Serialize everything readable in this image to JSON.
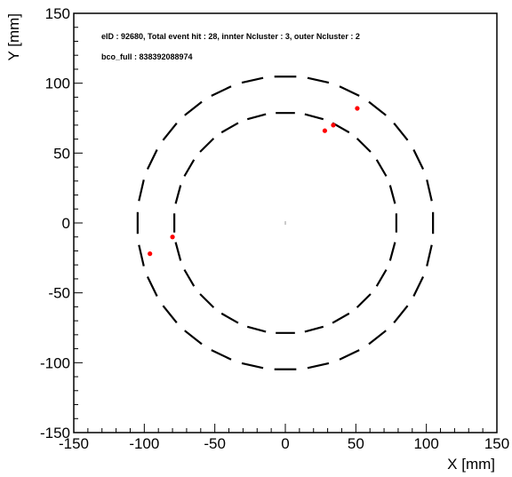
{
  "chart_data": {
    "type": "scatter",
    "title": "",
    "xlabel": "X [mm]",
    "ylabel": "Y [mm]",
    "xlim": [
      -150,
      150
    ],
    "ylim": [
      -150,
      150
    ],
    "x_ticks": [
      -150,
      -100,
      -50,
      0,
      50,
      100,
      150
    ],
    "y_ticks": [
      -150,
      -100,
      -50,
      0,
      50,
      100,
      150
    ],
    "grid": false,
    "annotations": [
      "eID : 92680, Total event hit : 28, innter Ncluster : 3, outer Ncluster : 2",
      "bco_full : 838392088974"
    ],
    "detector_layers": [
      {
        "name": "inner",
        "radius": 79,
        "segments": 24,
        "segment_fraction": 0.66,
        "color": "#000000"
      },
      {
        "name": "outer",
        "radius": 105,
        "segments": 28,
        "segment_fraction": 0.66,
        "color": "#000000"
      }
    ],
    "series": [
      {
        "color": "#ff0000",
        "points": [
          {
            "x": 28,
            "y": 66
          },
          {
            "x": 34,
            "y": 70
          },
          {
            "x": 51,
            "y": 82
          },
          {
            "x": -80,
            "y": -10
          },
          {
            "x": -96,
            "y": -22
          }
        ]
      }
    ],
    "origin_marker": {
      "x": 0,
      "y": 0
    }
  }
}
